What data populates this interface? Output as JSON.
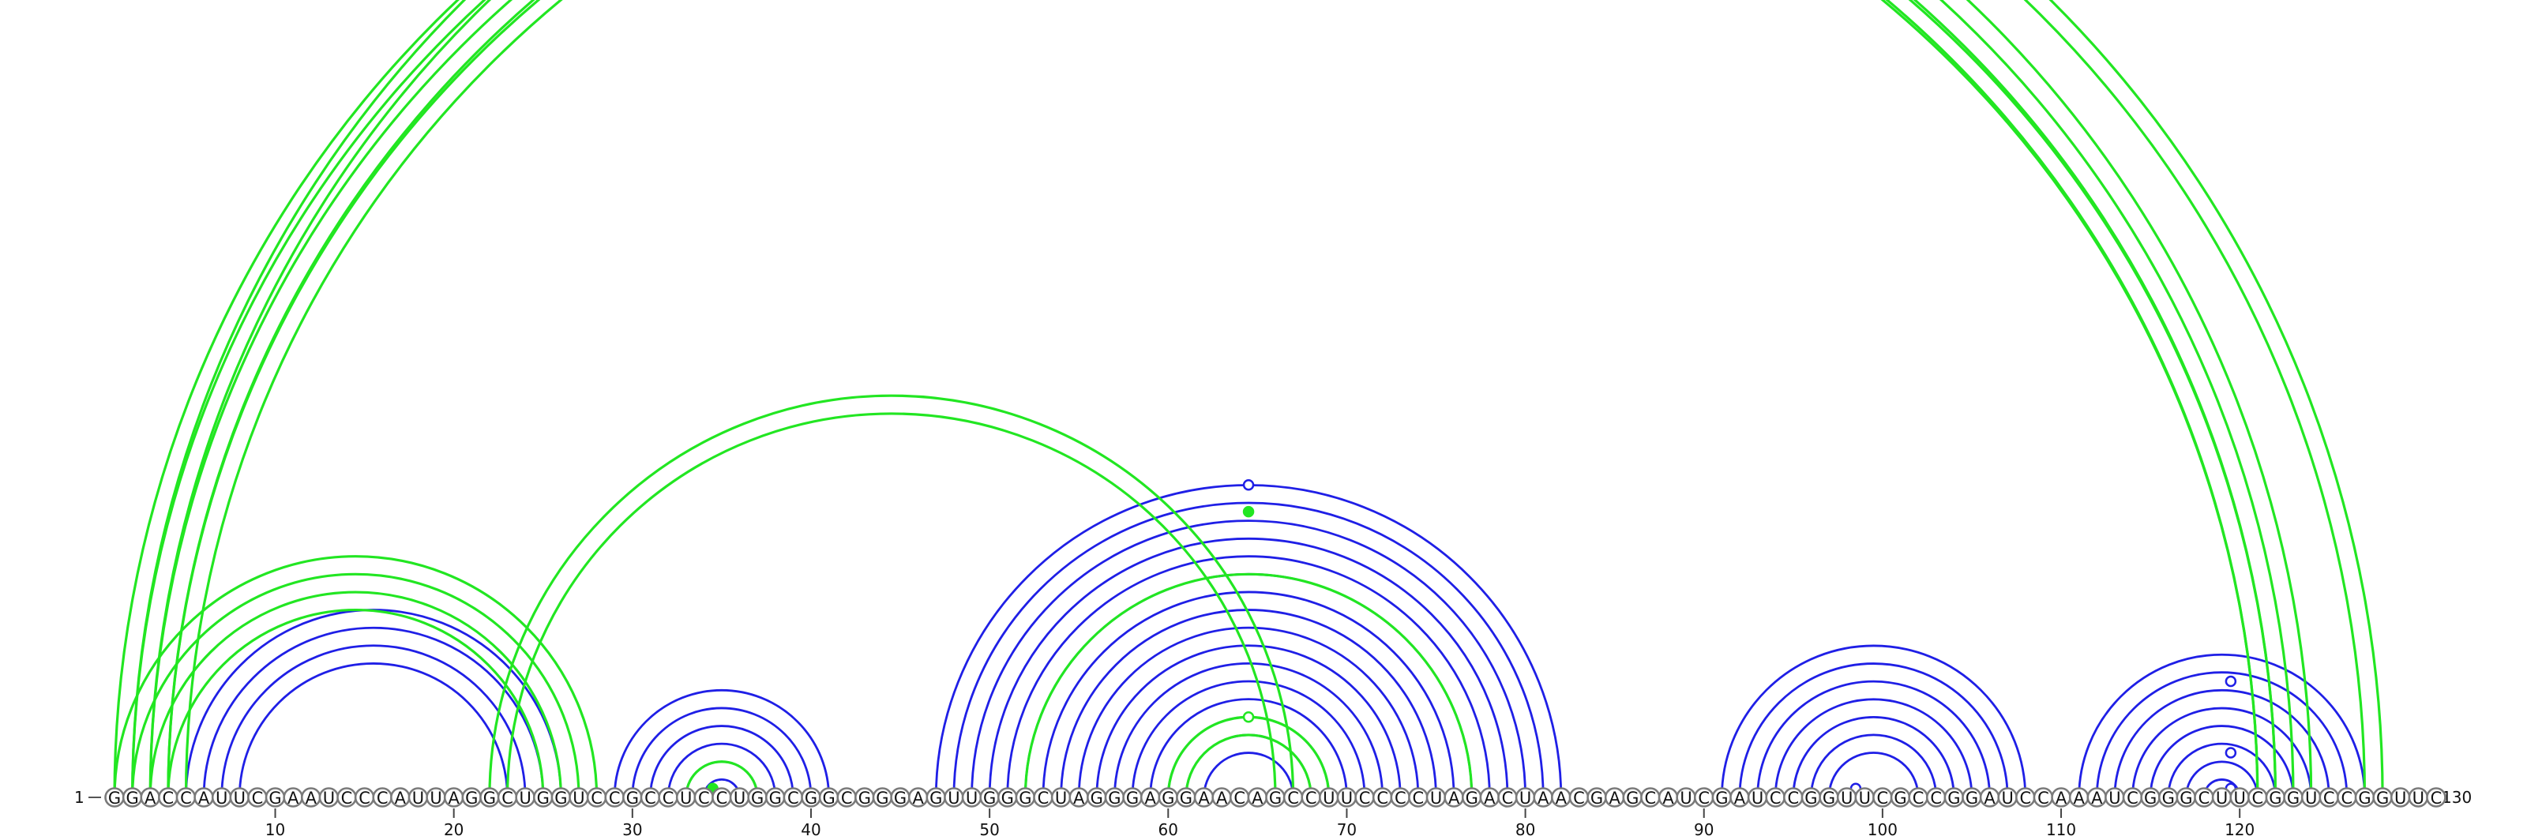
{
  "sequence": "GGACCAUUCGAAUCCCAUUAGGCUGGUCCGCCUCCUGGCGGCGGGAGUUGGGCUAGGGAGGAACAGCCUUCCCCUAGACUAACGAGCAUCGAUCCGGUUCGCCGGAUCCAAAUCGGGCUUCGGUCCGGUUC",
  "start_label": "1",
  "end_label": "130",
  "ticks": [
    10,
    20,
    30,
    40,
    50,
    60,
    70,
    80,
    90,
    100,
    110,
    120
  ],
  "colors": {
    "blue": "#1f1fe6",
    "green": "#22e622",
    "circle_stroke": "#7a7a7a"
  },
  "blue_helices": [
    {
      "i": 5,
      "j": 26,
      "count": 4
    },
    {
      "i": 29,
      "j": 41,
      "count": 6
    },
    {
      "i": 47,
      "j": 82,
      "count": 16
    },
    {
      "i": 91,
      "j": 108,
      "count": 7
    },
    {
      "i": 111,
      "j": 127,
      "count": 8
    }
  ],
  "green_helices": [
    {
      "i": 1,
      "j": 124,
      "count": 4
    },
    {
      "i": 2,
      "j": 128,
      "count": 2
    },
    {
      "i": 4,
      "j": 122,
      "count": 2
    },
    {
      "i": 1,
      "j": 28,
      "count": 4
    },
    {
      "i": 22,
      "j": 67,
      "count": 2
    },
    {
      "i": 52,
      "j": 77,
      "count": 1
    },
    {
      "i": 60,
      "j": 69,
      "count": 2
    },
    {
      "i": 33,
      "j": 37,
      "count": 1
    }
  ],
  "markers": [
    {
      "pos": 64.5,
      "arc_span": 122,
      "style": "open",
      "color": "green"
    },
    {
      "pos": 64.5,
      "arc_span": 35,
      "style": "open",
      "color": "blue"
    },
    {
      "pos": 64.5,
      "arc_span": 32,
      "style": "filled",
      "color": "green"
    },
    {
      "pos": 64.5,
      "arc_span": 9,
      "style": "open",
      "color": "green"
    },
    {
      "pos": 34.5,
      "arc_span": 1,
      "style": "filled",
      "color": "green"
    },
    {
      "pos": 98.5,
      "arc_span": 1,
      "style": "open",
      "color": "blue"
    },
    {
      "pos": 119.5,
      "arc_span": 1,
      "style": "open",
      "color": "blue"
    },
    {
      "pos": 119.5,
      "arc_span": 5,
      "style": "open",
      "color": "blue"
    },
    {
      "pos": 119.5,
      "arc_span": 13,
      "style": "open",
      "color": "blue"
    }
  ]
}
